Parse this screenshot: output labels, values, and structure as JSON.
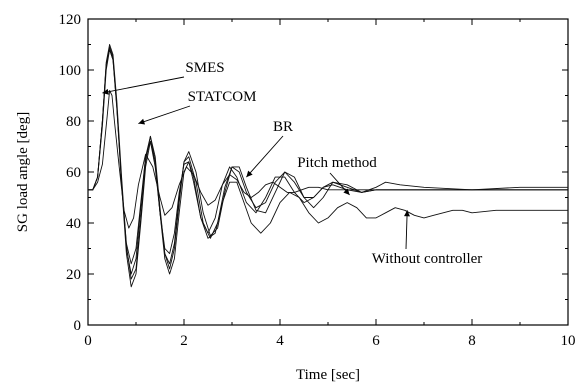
{
  "chart_data": {
    "type": "line",
    "title": "",
    "xlabel": "Time [sec]",
    "ylabel": "SG load angle [deg]",
    "xlim": [
      0,
      10
    ],
    "ylim": [
      0,
      120
    ],
    "xticks": [
      0,
      2,
      4,
      6,
      8,
      10
    ],
    "yticks": [
      0,
      20,
      40,
      60,
      80,
      100,
      120
    ],
    "grid": false,
    "legend": "none",
    "series": [
      {
        "name": "SMES",
        "x": [
          0,
          0.1,
          0.2,
          0.3,
          0.4,
          0.45,
          0.5,
          0.55,
          0.65,
          0.75,
          0.85,
          0.95,
          1.05,
          1.2,
          1.35,
          1.5,
          1.6,
          1.75,
          1.9,
          2.05,
          2.2,
          2.35,
          2.5,
          2.65,
          2.8,
          2.95,
          3.1,
          3.25,
          3.4,
          3.55,
          3.7,
          3.85,
          4.0,
          4.15,
          4.3,
          4.45,
          4.6,
          4.8,
          5.0,
          5.2,
          5.4,
          5.7,
          6.0,
          6.5,
          7.0,
          7.5,
          8.0,
          9.0,
          10.0
        ],
        "y": [
          53,
          53,
          56,
          63,
          82,
          92,
          90,
          80,
          62,
          45,
          38,
          42,
          55,
          67,
          62,
          50,
          43,
          46,
          55,
          62,
          59,
          52,
          47,
          49,
          55,
          59,
          57,
          52,
          50,
          52,
          55,
          56,
          54,
          52,
          52,
          53,
          54,
          54,
          53,
          53,
          53,
          53,
          53,
          53,
          53,
          53,
          53,
          53,
          53
        ]
      },
      {
        "name": "STATCOM",
        "x": [
          0,
          0.1,
          0.2,
          0.3,
          0.38,
          0.45,
          0.52,
          0.6,
          0.7,
          0.8,
          0.9,
          1.0,
          1.1,
          1.2,
          1.3,
          1.4,
          1.5,
          1.6,
          1.7,
          1.8,
          1.9,
          2.0,
          2.1,
          2.2,
          2.35,
          2.5,
          2.65,
          2.8,
          2.95,
          3.1,
          3.3,
          3.5,
          3.7,
          3.9,
          4.1,
          4.3,
          4.5,
          4.7,
          4.9,
          5.1,
          5.4,
          5.7,
          6.0,
          6.5,
          7.0,
          8.0,
          9.0,
          10.0
        ],
        "y": [
          53,
          53,
          58,
          78,
          100,
          108,
          104,
          85,
          55,
          32,
          24,
          30,
          48,
          66,
          72,
          62,
          44,
          30,
          28,
          36,
          52,
          63,
          64,
          56,
          42,
          36,
          42,
          55,
          62,
          58,
          48,
          44,
          50,
          58,
          58,
          52,
          48,
          50,
          54,
          55,
          53,
          52,
          53,
          53,
          53,
          53,
          53,
          53
        ]
      },
      {
        "name": "BR",
        "x": [
          0,
          0.1,
          0.2,
          0.3,
          0.38,
          0.45,
          0.52,
          0.6,
          0.7,
          0.8,
          0.9,
          1.0,
          1.1,
          1.2,
          1.3,
          1.4,
          1.5,
          1.6,
          1.7,
          1.8,
          1.9,
          2.0,
          2.1,
          2.25,
          2.4,
          2.55,
          2.7,
          2.85,
          3.0,
          3.15,
          3.3,
          3.5,
          3.7,
          3.9,
          4.1,
          4.3,
          4.5,
          4.7,
          4.9,
          5.1,
          5.4,
          5.7,
          6.0,
          6.5,
          7.0,
          8.0,
          9.0,
          10.0
        ],
        "y": [
          53,
          53,
          58,
          80,
          102,
          109,
          105,
          86,
          56,
          30,
          20,
          26,
          46,
          66,
          74,
          64,
          44,
          28,
          24,
          32,
          50,
          64,
          66,
          56,
          40,
          34,
          40,
          54,
          62,
          60,
          52,
          46,
          48,
          56,
          60,
          56,
          50,
          50,
          54,
          56,
          54,
          52,
          53,
          53,
          53,
          53,
          53,
          53
        ]
      },
      {
        "name": "Pitch method",
        "x": [
          0,
          0.1,
          0.2,
          0.3,
          0.38,
          0.45,
          0.52,
          0.6,
          0.7,
          0.8,
          0.9,
          1.0,
          1.1,
          1.2,
          1.3,
          1.4,
          1.5,
          1.6,
          1.7,
          1.8,
          1.9,
          2.0,
          2.1,
          2.25,
          2.4,
          2.55,
          2.7,
          2.85,
          3.0,
          3.15,
          3.3,
          3.5,
          3.7,
          3.9,
          4.1,
          4.3,
          4.5,
          4.7,
          4.9,
          5.1,
          5.4,
          5.7,
          6.0,
          6.2,
          6.5,
          7.0,
          8.0,
          9.0,
          10.0
        ],
        "y": [
          53,
          53,
          58,
          80,
          103,
          110,
          106,
          88,
          58,
          31,
          18,
          22,
          42,
          64,
          74,
          66,
          46,
          28,
          22,
          30,
          48,
          64,
          68,
          60,
          44,
          35,
          38,
          52,
          62,
          62,
          54,
          45,
          44,
          52,
          60,
          58,
          50,
          46,
          50,
          56,
          55,
          52,
          54,
          56,
          55,
          54,
          53,
          54,
          54
        ]
      },
      {
        "name": "Without controller",
        "x": [
          0,
          0.1,
          0.2,
          0.3,
          0.38,
          0.45,
          0.52,
          0.6,
          0.7,
          0.8,
          0.9,
          1.0,
          1.1,
          1.2,
          1.3,
          1.4,
          1.5,
          1.6,
          1.7,
          1.8,
          1.9,
          2.0,
          2.1,
          2.2,
          2.35,
          2.5,
          2.65,
          2.8,
          2.95,
          3.1,
          3.25,
          3.4,
          3.6,
          3.8,
          4.0,
          4.2,
          4.4,
          4.6,
          4.8,
          5.0,
          5.2,
          5.4,
          5.6,
          5.8,
          6.0,
          6.2,
          6.4,
          6.6,
          6.8,
          7.0,
          7.2,
          7.4,
          7.6,
          7.8,
          8.0,
          8.5,
          9.0,
          9.5,
          10.0
        ],
        "y": [
          53,
          53,
          58,
          80,
          102,
          108,
          104,
          86,
          55,
          28,
          15,
          20,
          40,
          62,
          72,
          64,
          44,
          26,
          20,
          26,
          44,
          60,
          64,
          58,
          42,
          34,
          36,
          48,
          56,
          56,
          48,
          40,
          36,
          40,
          48,
          52,
          50,
          44,
          40,
          42,
          46,
          48,
          46,
          42,
          42,
          44,
          46,
          45,
          43,
          42,
          43,
          44,
          45,
          45,
          44,
          45,
          45,
          45,
          45
        ]
      }
    ],
    "annotations": [
      {
        "text": "SMES",
        "target_x": 0.3,
        "target_y": 91
      },
      {
        "text": "STATCOM",
        "target_x": 1.05,
        "target_y": 79
      },
      {
        "text": "BR",
        "target_x": 3.3,
        "target_y": 58
      },
      {
        "text": "Pitch method",
        "target_x": 5.45,
        "target_y": 51
      },
      {
        "text": "Without controller",
        "target_x": 6.65,
        "target_y": 45
      }
    ]
  }
}
